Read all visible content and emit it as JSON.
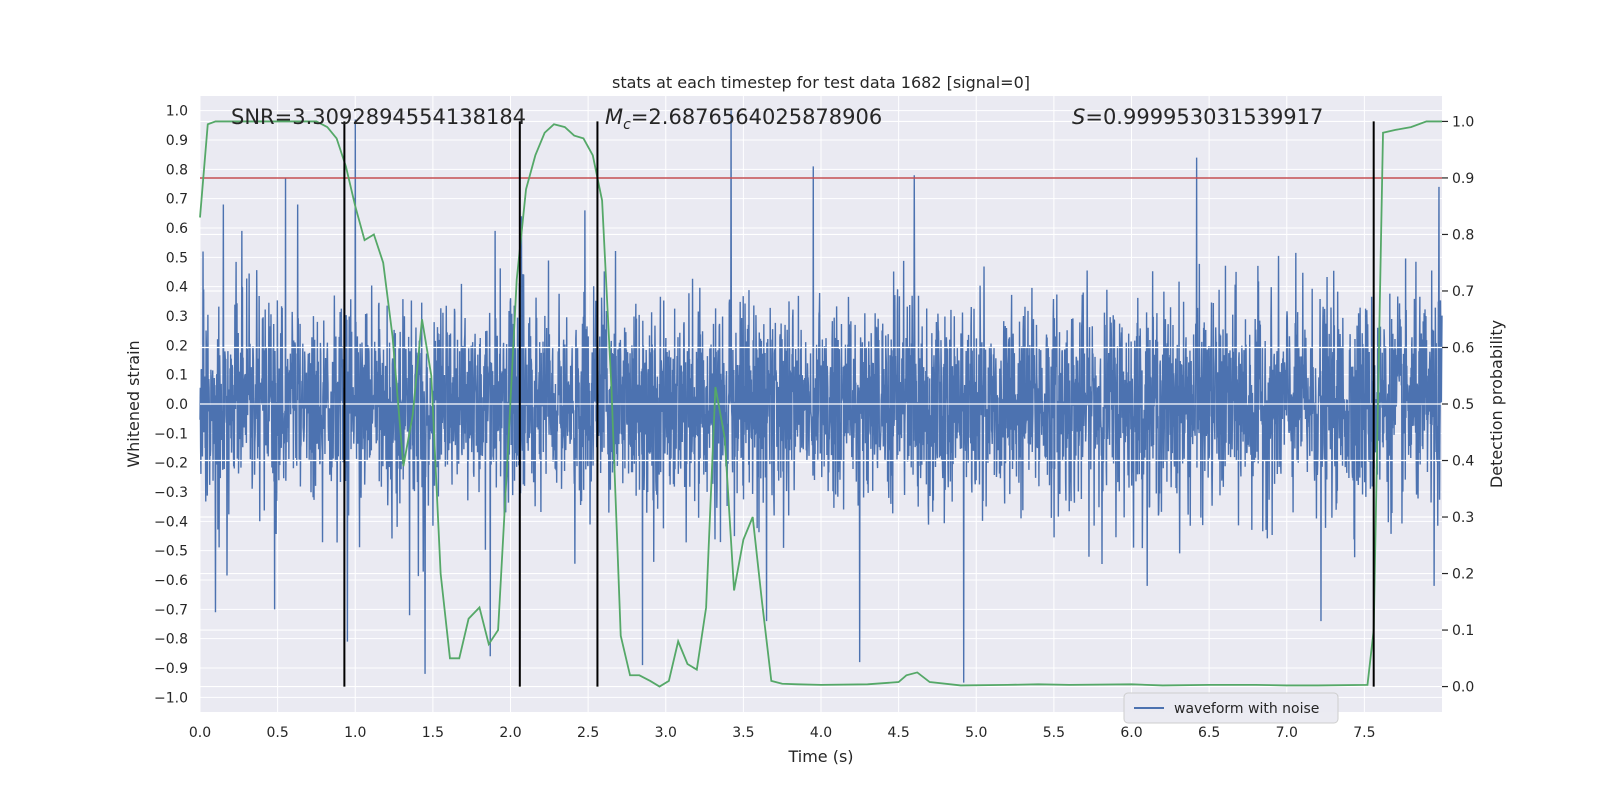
{
  "chart_data": {
    "type": "line",
    "title": "stats at each timestep for test data 1682 [signal=0]",
    "xlabel": "Time (s)",
    "ylabel": "Whitened strain",
    "y2label": "Detection probability",
    "xlim": [
      0,
      8
    ],
    "ylim": [
      -1.05,
      1.05
    ],
    "y2lim": [
      -0.045,
      1.045
    ],
    "xticks": [
      0.0,
      0.5,
      1.0,
      1.5,
      2.0,
      2.5,
      3.0,
      3.5,
      4.0,
      4.5,
      5.0,
      5.5,
      6.0,
      6.5,
      7.0,
      7.5
    ],
    "xtick_labels": [
      "0.0",
      "0.5",
      "1.0",
      "1.5",
      "2.0",
      "2.5",
      "3.0",
      "3.5",
      "4.0",
      "4.5",
      "5.0",
      "5.5",
      "6.0",
      "6.5",
      "7.0",
      "7.5"
    ],
    "yticks": [
      -1.0,
      -0.9,
      -0.8,
      -0.7,
      -0.6,
      -0.5,
      -0.4,
      -0.3,
      -0.2,
      -0.1,
      0.0,
      0.1,
      0.2,
      0.3,
      0.4,
      0.5,
      0.6,
      0.7,
      0.8,
      0.9,
      1.0
    ],
    "ytick_labels": [
      "−1.0",
      "−0.9",
      "−0.8",
      "−0.7",
      "−0.6",
      "−0.5",
      "−0.4",
      "−0.3",
      "−0.2",
      "−0.1",
      "0.0",
      "0.1",
      "0.2",
      "0.3",
      "0.4",
      "0.5",
      "0.6",
      "0.7",
      "0.8",
      "0.9",
      "1.0"
    ],
    "y2ticks": [
      0.0,
      0.1,
      0.2,
      0.3,
      0.4,
      0.5,
      0.6,
      0.7,
      0.8,
      0.9,
      1.0
    ],
    "y2tick_labels": [
      "0.0",
      "0.1",
      "0.2",
      "0.3",
      "0.4",
      "0.5",
      "0.6",
      "0.7",
      "0.8",
      "0.9",
      "1.0"
    ],
    "grid": true,
    "legend_placement": "lower-center-right",
    "threshold": 0.9,
    "vlines": [
      0.93,
      2.06,
      2.56,
      7.56
    ],
    "annotations": {
      "snr_label": "SNR=3.3092894554138184",
      "mc_symbol": "M",
      "mc_sub": "c",
      "mc_value": "=2.6876564025878906",
      "s_symbol": "S",
      "s_value": "=0.999953031539917"
    },
    "series": [
      {
        "name": "waveform with noise",
        "color": "#4c72b0",
        "kind": "noise",
        "n_samples": 4096,
        "typical_amplitude": 0.28,
        "spikes": [
          {
            "x": 0.02,
            "y": 0.52
          },
          {
            "x": 0.15,
            "y": 0.68
          },
          {
            "x": 0.27,
            "y": 0.59
          },
          {
            "x": 0.55,
            "y": 0.77
          },
          {
            "x": 0.63,
            "y": 0.68
          },
          {
            "x": 0.93,
            "y": 0.87
          },
          {
            "x": 1.0,
            "y": 0.97
          },
          {
            "x": 1.9,
            "y": 0.59
          },
          {
            "x": 2.07,
            "y": 0.64
          },
          {
            "x": 2.48,
            "y": 0.66
          },
          {
            "x": 3.42,
            "y": 1.0
          },
          {
            "x": 3.95,
            "y": 0.81
          },
          {
            "x": 4.6,
            "y": 0.78
          },
          {
            "x": 6.42,
            "y": 0.84
          },
          {
            "x": 7.98,
            "y": 0.74
          },
          {
            "x": 0.1,
            "y": -0.71
          },
          {
            "x": 0.48,
            "y": -0.7
          },
          {
            "x": 0.95,
            "y": -0.81
          },
          {
            "x": 1.35,
            "y": -0.72
          },
          {
            "x": 1.45,
            "y": -0.92
          },
          {
            "x": 1.87,
            "y": -0.86
          },
          {
            "x": 2.06,
            "y": -0.6
          },
          {
            "x": 2.85,
            "y": -0.89
          },
          {
            "x": 3.65,
            "y": -0.74
          },
          {
            "x": 4.25,
            "y": -0.88
          },
          {
            "x": 4.92,
            "y": -0.95
          },
          {
            "x": 7.22,
            "y": -0.74
          },
          {
            "x": 7.95,
            "y": -0.62
          }
        ]
      },
      {
        "name": "",
        "color": "#55a868",
        "kind": "line",
        "x": [
          0.0,
          0.05,
          0.1,
          0.2,
          0.5,
          0.75,
          0.82,
          0.88,
          0.94,
          1.0,
          1.06,
          1.12,
          1.18,
          1.24,
          1.31,
          1.37,
          1.43,
          1.49,
          1.55,
          1.61,
          1.67,
          1.73,
          1.8,
          1.86,
          1.92,
          1.98,
          2.04,
          2.1,
          2.16,
          2.22,
          2.28,
          2.35,
          2.41,
          2.47,
          2.53,
          2.59,
          2.65,
          2.71,
          2.77,
          2.83,
          2.9,
          2.96,
          3.02,
          3.08,
          3.14,
          3.2,
          3.26,
          3.32,
          3.38,
          3.44,
          3.5,
          3.56,
          3.62,
          3.68,
          3.75,
          3.85,
          4.0,
          4.3,
          4.5,
          4.55,
          4.62,
          4.7,
          4.9,
          5.2,
          5.4,
          5.6,
          6.0,
          6.2,
          6.5,
          6.8,
          7.0,
          7.2,
          7.52,
          7.56,
          7.62,
          7.7,
          7.8,
          7.9,
          8.0
        ],
        "y": [
          0.83,
          0.995,
          1.0,
          1.0,
          1.0,
          1.0,
          0.99,
          0.97,
          0.92,
          0.85,
          0.79,
          0.8,
          0.75,
          0.62,
          0.39,
          0.48,
          0.65,
          0.55,
          0.2,
          0.05,
          0.05,
          0.12,
          0.14,
          0.075,
          0.1,
          0.4,
          0.72,
          0.88,
          0.94,
          0.98,
          0.995,
          0.99,
          0.975,
          0.97,
          0.94,
          0.86,
          0.53,
          0.09,
          0.02,
          0.02,
          0.01,
          0.0,
          0.01,
          0.08,
          0.04,
          0.03,
          0.14,
          0.53,
          0.44,
          0.17,
          0.26,
          0.3,
          0.15,
          0.01,
          0.005,
          0.004,
          0.003,
          0.004,
          0.008,
          0.02,
          0.025,
          0.008,
          0.002,
          0.003,
          0.004,
          0.003,
          0.004,
          0.002,
          0.003,
          0.003,
          0.002,
          0.002,
          0.003,
          0.1,
          0.98,
          0.985,
          0.99,
          1.0,
          1.0
        ]
      }
    ],
    "threshold_color": "#c44e52",
    "vline_color": "#000000",
    "bg_color": "#eaeaf2",
    "grid_color": "#ffffff"
  }
}
